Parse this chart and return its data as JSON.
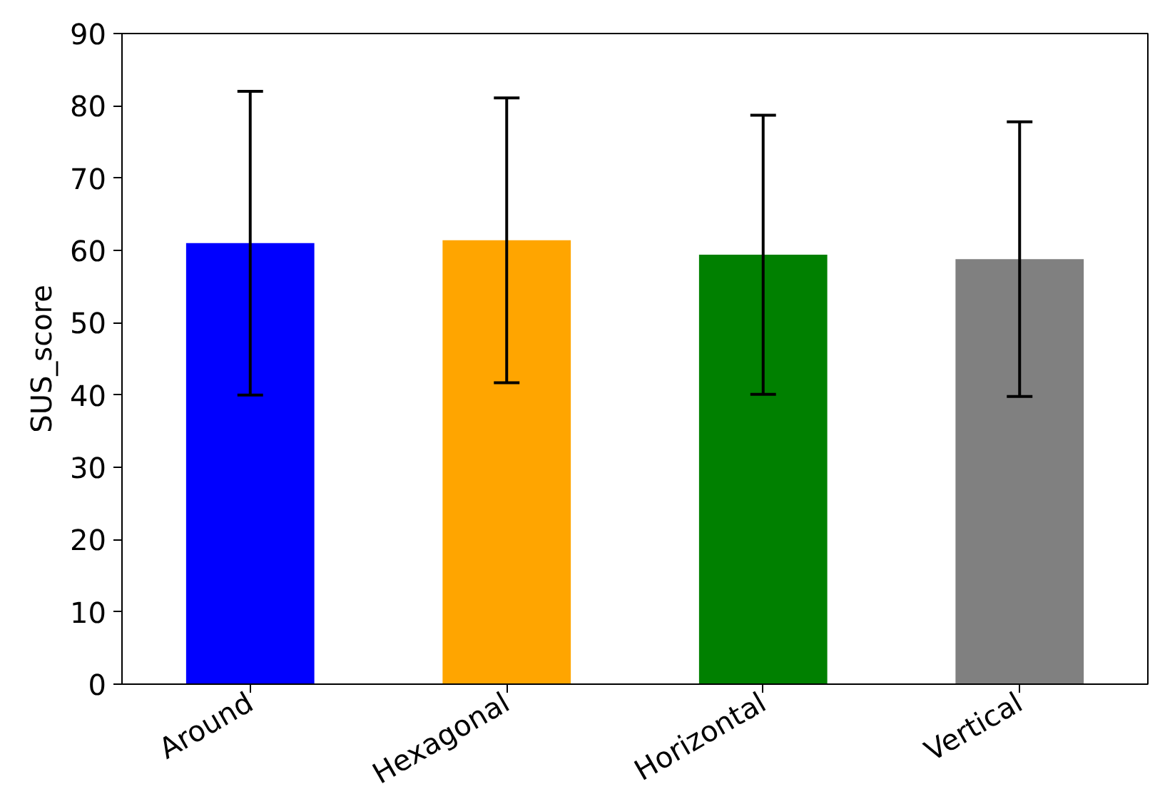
{
  "chart_data": {
    "type": "bar",
    "ylabel": "SUS_score",
    "categories": [
      "Around",
      "Hexagonal",
      "Horizontal",
      "Vertical"
    ],
    "values": [
      61.0,
      61.4,
      59.4,
      58.8
    ],
    "colors": [
      "#0000ff",
      "#ffa500",
      "#008000",
      "#808080"
    ],
    "errors": [
      21.0,
      19.7,
      19.3,
      19.0
    ],
    "ylim": [
      0,
      90
    ],
    "yticks": [
      0,
      10,
      20,
      30,
      40,
      50,
      60,
      70,
      80,
      90
    ],
    "grid": false
  }
}
